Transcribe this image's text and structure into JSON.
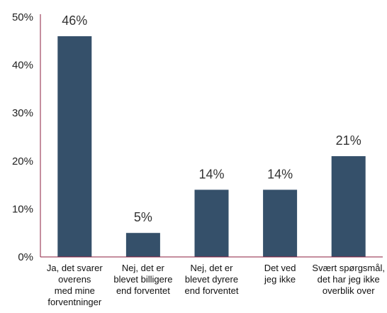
{
  "chart_data": {
    "type": "bar",
    "title": "",
    "xlabel": "",
    "ylabel": "",
    "ylim": [
      0,
      50
    ],
    "y_ticks": [
      "0%",
      "10%",
      "20%",
      "30%",
      "40%",
      "50%"
    ],
    "y_tick_values": [
      0,
      10,
      20,
      30,
      40,
      50
    ],
    "grid": false,
    "categories": [
      [
        "Ja, det svarer",
        "overens",
        "med mine",
        "forventninger"
      ],
      [
        "Nej, det er",
        "blevet billigere",
        "end forventet"
      ],
      [
        "Nej, det er",
        "blevet dyrere",
        "end forventet"
      ],
      [
        "Det ved",
        "jeg ikke"
      ],
      [
        "Svært spørgsmål,",
        "det har jeg ikke",
        "overblik over"
      ]
    ],
    "values": [
      46,
      5,
      14,
      14,
      21
    ],
    "data_labels": [
      "46%",
      "5%",
      "14%",
      "14%",
      "21%"
    ],
    "bar_color": "#35506a",
    "axis_color": "#8b1c3c"
  }
}
